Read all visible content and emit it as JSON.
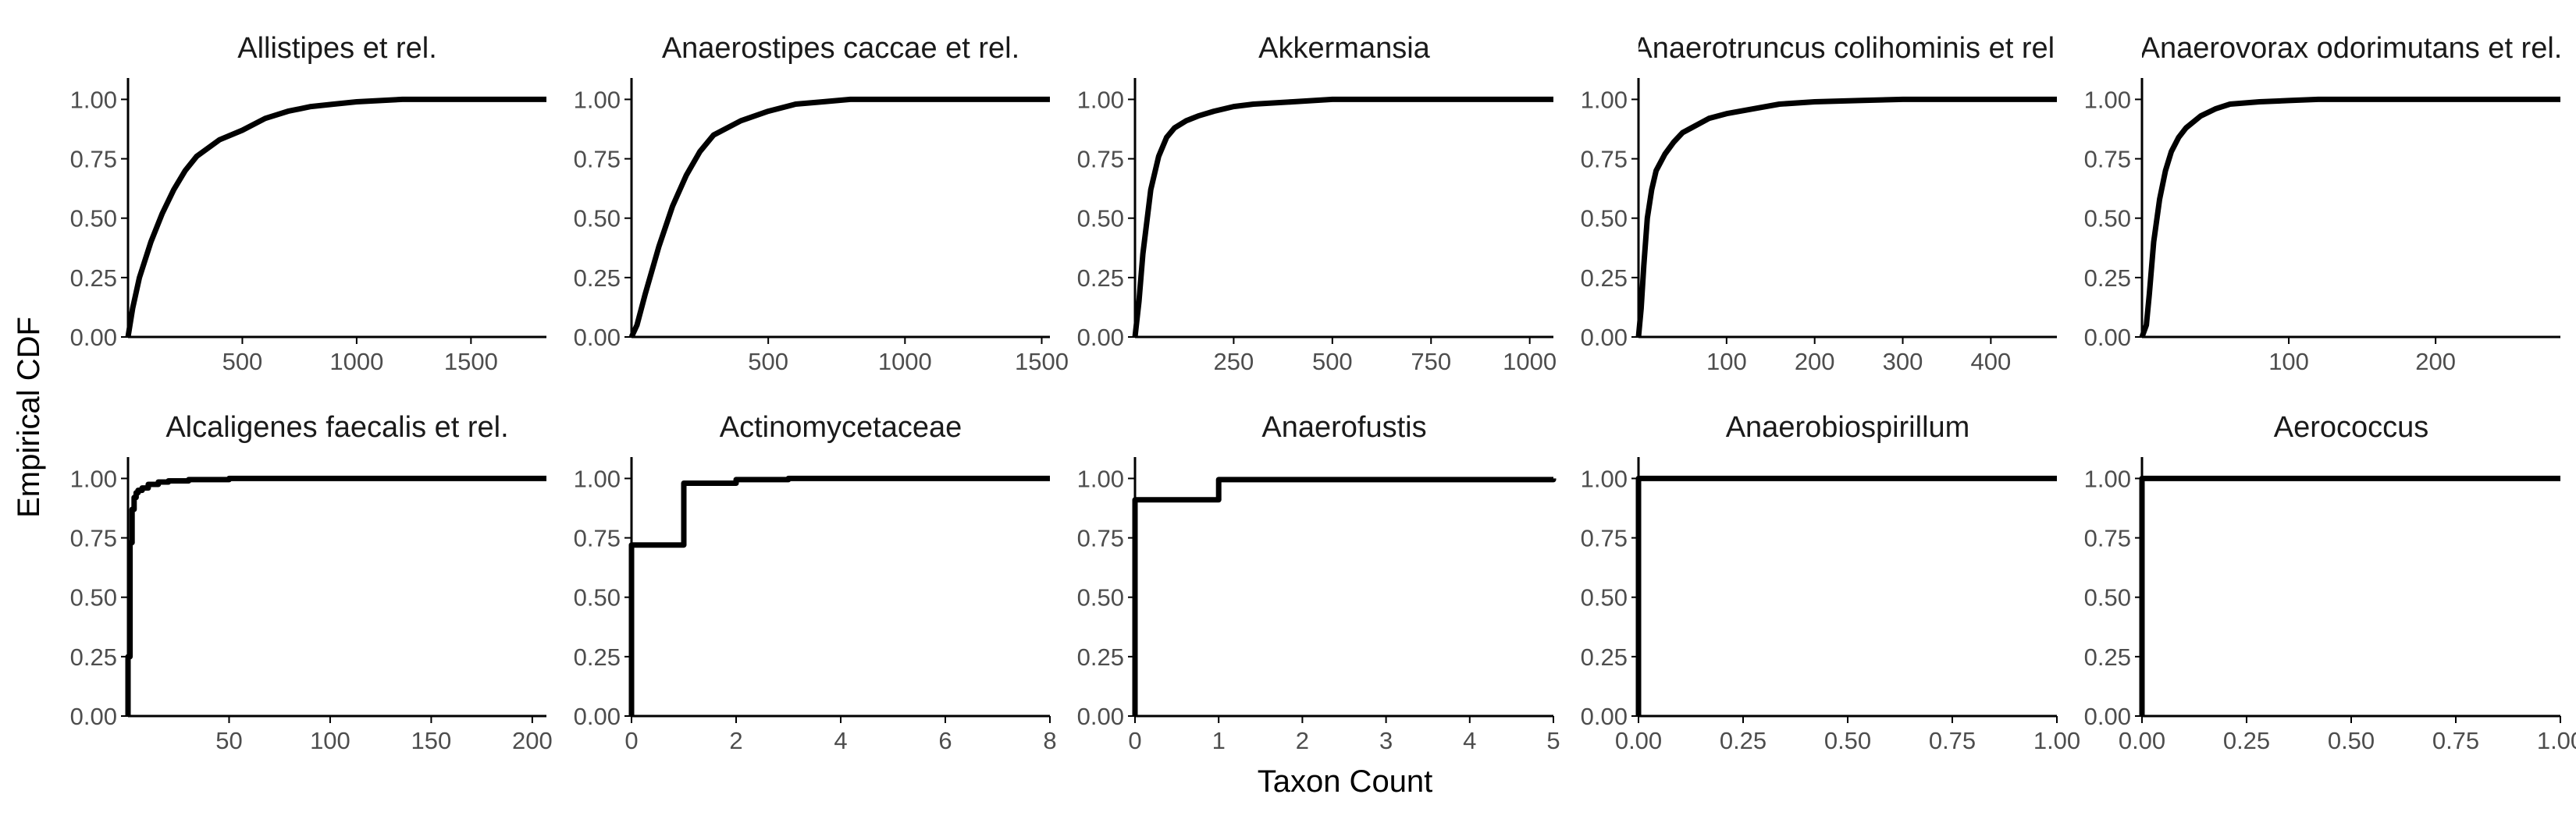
{
  "figure": {
    "xlabel": "Taxon Count",
    "ylabel": "Empirical CDF"
  },
  "colors": {
    "line": "#000000",
    "axis": "#000000",
    "tick_label": "#4d4d4d",
    "title": "#1a1a1a"
  },
  "chart_data": [
    {
      "type": "line",
      "title": "Allistipes et rel.",
      "step": false,
      "xlim": [
        0,
        1830
      ],
      "ylim": [
        0,
        1.09
      ],
      "xticks": [
        500,
        1000,
        1500
      ],
      "xtick_labels": [
        "500",
        "1000",
        "1500"
      ],
      "yticks": [
        0,
        0.25,
        0.5,
        0.75,
        1
      ],
      "ytick_labels": [
        "0.00",
        "0.25",
        "0.50",
        "0.75",
        "1.00"
      ],
      "series": [
        {
          "x": [
            0,
            20,
            50,
            100,
            150,
            200,
            250,
            300,
            400,
            500,
            600,
            700,
            800,
            900,
            1000,
            1200,
            1500,
            1830
          ],
          "y": [
            0,
            0.12,
            0.25,
            0.4,
            0.52,
            0.62,
            0.7,
            0.76,
            0.83,
            0.87,
            0.92,
            0.95,
            0.97,
            0.98,
            0.99,
            1.0,
            1.0,
            1.0
          ]
        }
      ]
    },
    {
      "type": "line",
      "title": "Anaerostipes caccae et rel.",
      "step": false,
      "xlim": [
        0,
        1530
      ],
      "ylim": [
        0,
        1.09
      ],
      "xticks": [
        500,
        1000,
        1500
      ],
      "xtick_labels": [
        "500",
        "1000",
        "1500"
      ],
      "yticks": [
        0,
        0.25,
        0.5,
        0.75,
        1
      ],
      "ytick_labels": [
        "0.00",
        "0.25",
        "0.50",
        "0.75",
        "1.00"
      ],
      "series": [
        {
          "x": [
            0,
            20,
            50,
            100,
            150,
            200,
            250,
            300,
            400,
            500,
            600,
            700,
            800,
            1000,
            1200,
            1530
          ],
          "y": [
            0,
            0.05,
            0.18,
            0.38,
            0.55,
            0.68,
            0.78,
            0.85,
            0.91,
            0.95,
            0.98,
            0.99,
            1.0,
            1.0,
            1.0,
            1.0
          ]
        }
      ]
    },
    {
      "type": "line",
      "title": "Akkermansia",
      "step": false,
      "xlim": [
        0,
        1060
      ],
      "ylim": [
        0,
        1.09
      ],
      "xticks": [
        250,
        500,
        750,
        1000
      ],
      "xtick_labels": [
        "250",
        "500",
        "750",
        "1000"
      ],
      "yticks": [
        0,
        0.25,
        0.5,
        0.75,
        1
      ],
      "ytick_labels": [
        "0.00",
        "0.25",
        "0.50",
        "0.75",
        "1.00"
      ],
      "series": [
        {
          "x": [
            0,
            10,
            20,
            40,
            60,
            80,
            100,
            130,
            160,
            200,
            250,
            300,
            400,
            500,
            700,
            1060
          ],
          "y": [
            0,
            0.15,
            0.35,
            0.62,
            0.76,
            0.84,
            0.88,
            0.91,
            0.93,
            0.95,
            0.97,
            0.98,
            0.99,
            1.0,
            1.0,
            1.0
          ]
        }
      ]
    },
    {
      "type": "line",
      "title": "Anaerotruncus colihominis et rel.",
      "step": false,
      "xlim": [
        0,
        475
      ],
      "ylim": [
        0,
        1.09
      ],
      "xticks": [
        100,
        200,
        300,
        400
      ],
      "xtick_labels": [
        "100",
        "200",
        "300",
        "400"
      ],
      "yticks": [
        0,
        0.25,
        0.5,
        0.75,
        1
      ],
      "ytick_labels": [
        "0.00",
        "0.25",
        "0.50",
        "0.75",
        "1.00"
      ],
      "series": [
        {
          "x": [
            0,
            3,
            6,
            10,
            15,
            20,
            30,
            40,
            50,
            60,
            80,
            100,
            130,
            160,
            200,
            250,
            300,
            475
          ],
          "y": [
            0,
            0.12,
            0.3,
            0.5,
            0.62,
            0.7,
            0.77,
            0.82,
            0.86,
            0.88,
            0.92,
            0.94,
            0.96,
            0.98,
            0.99,
            0.995,
            1.0,
            1.0
          ]
        }
      ]
    },
    {
      "type": "line",
      "title": "Anaerovorax odorimutans et rel.",
      "step": false,
      "xlim": [
        0,
        285
      ],
      "ylim": [
        0,
        1.09
      ],
      "xticks": [
        100,
        200
      ],
      "xtick_labels": [
        "100",
        "200"
      ],
      "yticks": [
        0,
        0.25,
        0.5,
        0.75,
        1
      ],
      "ytick_labels": [
        "0.00",
        "0.25",
        "0.50",
        "0.75",
        "1.00"
      ],
      "series": [
        {
          "x": [
            0,
            3,
            5,
            8,
            12,
            16,
            20,
            25,
            30,
            40,
            50,
            60,
            80,
            100,
            120,
            150,
            285
          ],
          "y": [
            0,
            0.05,
            0.18,
            0.4,
            0.58,
            0.7,
            0.78,
            0.84,
            0.88,
            0.93,
            0.96,
            0.98,
            0.99,
            0.995,
            1.0,
            1.0,
            1.0
          ]
        }
      ]
    },
    {
      "type": "line",
      "title": "Alcaligenes faecalis et rel.",
      "step": true,
      "xlim": [
        0,
        207
      ],
      "ylim": [
        0,
        1.09
      ],
      "xticks": [
        50,
        100,
        150,
        200
      ],
      "xtick_labels": [
        "50",
        "100",
        "150",
        "200"
      ],
      "yticks": [
        0,
        0.25,
        0.5,
        0.75,
        1
      ],
      "ytick_labels": [
        "0.00",
        "0.25",
        "0.50",
        "0.75",
        "1.00"
      ],
      "series": [
        {
          "x": [
            0,
            1,
            2,
            3,
            4,
            5,
            7,
            10,
            15,
            20,
            30,
            50,
            100,
            207
          ],
          "y": [
            0.25,
            0.73,
            0.87,
            0.92,
            0.94,
            0.95,
            0.96,
            0.975,
            0.985,
            0.99,
            0.995,
            1.0,
            1.0,
            1.0
          ]
        }
      ]
    },
    {
      "type": "line",
      "title": "Actinomycetaceae",
      "step": true,
      "xlim": [
        0,
        8
      ],
      "ylim": [
        0,
        1.09
      ],
      "xticks": [
        0,
        2,
        4,
        6,
        8
      ],
      "xtick_labels": [
        "0",
        "2",
        "4",
        "6",
        "8"
      ],
      "yticks": [
        0,
        0.25,
        0.5,
        0.75,
        1
      ],
      "ytick_labels": [
        "0.00",
        "0.25",
        "0.50",
        "0.75",
        "1.00"
      ],
      "series": [
        {
          "x": [
            0,
            1,
            2,
            3,
            8
          ],
          "y": [
            0.72,
            0.98,
            0.995,
            1.0,
            1.0
          ]
        }
      ]
    },
    {
      "type": "line",
      "title": "Anaerofustis",
      "step": true,
      "xlim": [
        0,
        5
      ],
      "ylim": [
        0,
        1.09
      ],
      "xticks": [
        0,
        1,
        2,
        3,
        4,
        5
      ],
      "xtick_labels": [
        "0",
        "1",
        "2",
        "3",
        "4",
        "5"
      ],
      "yticks": [
        0,
        0.25,
        0.5,
        0.75,
        1
      ],
      "ytick_labels": [
        "0.00",
        "0.25",
        "0.50",
        "0.75",
        "1.00"
      ],
      "series": [
        {
          "x": [
            0,
            1,
            5
          ],
          "y": [
            0.91,
            0.995,
            1.0
          ]
        }
      ]
    },
    {
      "type": "line",
      "title": "Anaerobiospirillum",
      "step": true,
      "xlim": [
        0,
        1
      ],
      "ylim": [
        0,
        1.09
      ],
      "xticks": [
        0,
        0.25,
        0.5,
        0.75,
        1
      ],
      "xtick_labels": [
        "0.00",
        "0.25",
        "0.50",
        "0.75",
        "1.00"
      ],
      "yticks": [
        0,
        0.25,
        0.5,
        0.75,
        1
      ],
      "ytick_labels": [
        "0.00",
        "0.25",
        "0.50",
        "0.75",
        "1.00"
      ],
      "series": [
        {
          "x": [
            0,
            1
          ],
          "y": [
            1.0,
            1.0
          ]
        }
      ]
    },
    {
      "type": "line",
      "title": "Aerococcus",
      "step": true,
      "xlim": [
        0,
        1
      ],
      "ylim": [
        0,
        1.09
      ],
      "xticks": [
        0,
        0.25,
        0.5,
        0.75,
        1
      ],
      "xtick_labels": [
        "0.00",
        "0.25",
        "0.50",
        "0.75",
        "1.00"
      ],
      "yticks": [
        0,
        0.25,
        0.5,
        0.75,
        1
      ],
      "ytick_labels": [
        "0.00",
        "0.25",
        "0.50",
        "0.75",
        "1.00"
      ],
      "series": [
        {
          "x": [
            0,
            1
          ],
          "y": [
            1.0,
            1.0
          ]
        }
      ]
    }
  ]
}
